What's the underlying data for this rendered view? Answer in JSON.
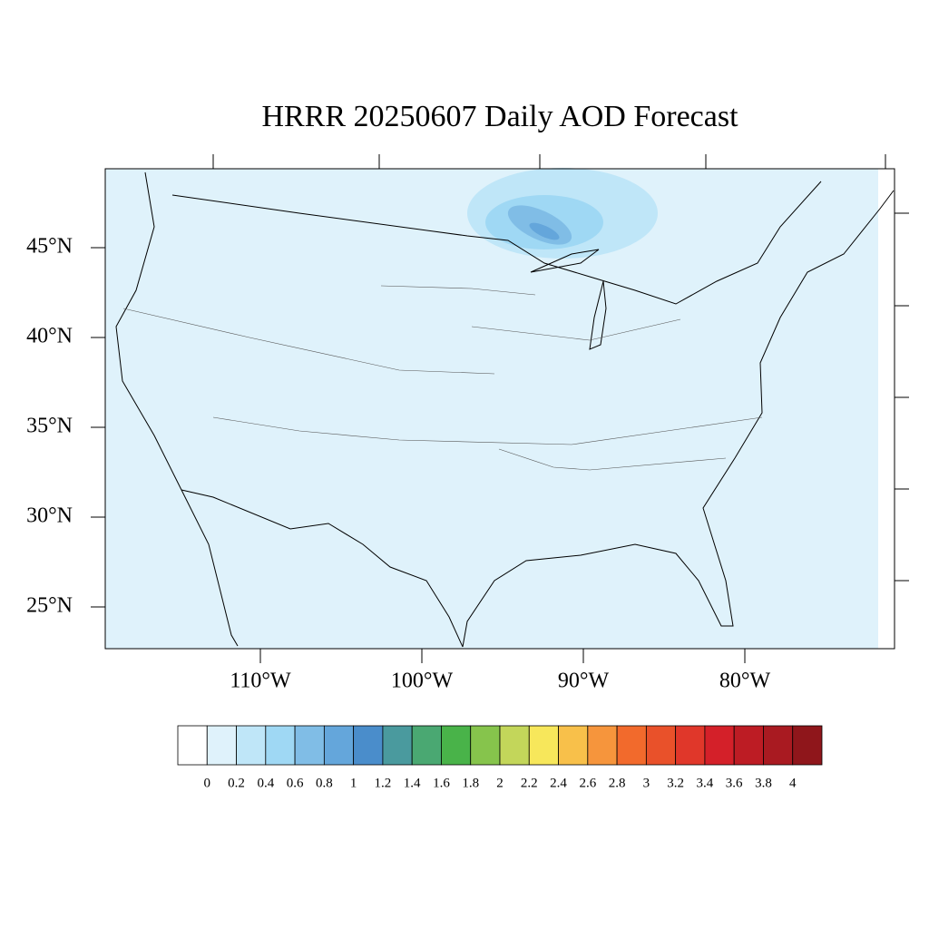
{
  "map": {
    "title": "HRRR 20250607 Daily AOD Forecast",
    "lat_labels": [
      {
        "value": 45,
        "label": "45°N"
      },
      {
        "value": 40,
        "label": "40°N"
      },
      {
        "value": 35,
        "label": "35°N"
      },
      {
        "value": 30,
        "label": "30°N"
      },
      {
        "value": 25,
        "label": "25°N"
      }
    ],
    "lon_labels": [
      {
        "value": -110,
        "label": "110°W"
      },
      {
        "value": -100,
        "label": "100°W"
      },
      {
        "value": -90,
        "label": "90°W"
      },
      {
        "value": -80,
        "label": "80°W"
      }
    ],
    "colorbar": {
      "levels": [
        0,
        0.2,
        0.4,
        0.6,
        0.8,
        1,
        1.2,
        1.4,
        1.6,
        1.8,
        2,
        2.2,
        2.4,
        2.6,
        2.8,
        3,
        3.2,
        3.4,
        3.6,
        3.8,
        4
      ],
      "colors": [
        "#ffffff",
        "#dff2fb",
        "#bfe6f8",
        "#9fd8f4",
        "#80bde6",
        "#64a6db",
        "#4a8dcb",
        "#4a9a9e",
        "#4aa872",
        "#49b349",
        "#86c44c",
        "#c3d65a",
        "#f7e75b",
        "#f8c04a",
        "#f6953c",
        "#f26a2c",
        "#e9512a",
        "#e0372a",
        "#d42029",
        "#bd1c24",
        "#a91a21",
        "#8f161b"
      ]
    }
  }
}
